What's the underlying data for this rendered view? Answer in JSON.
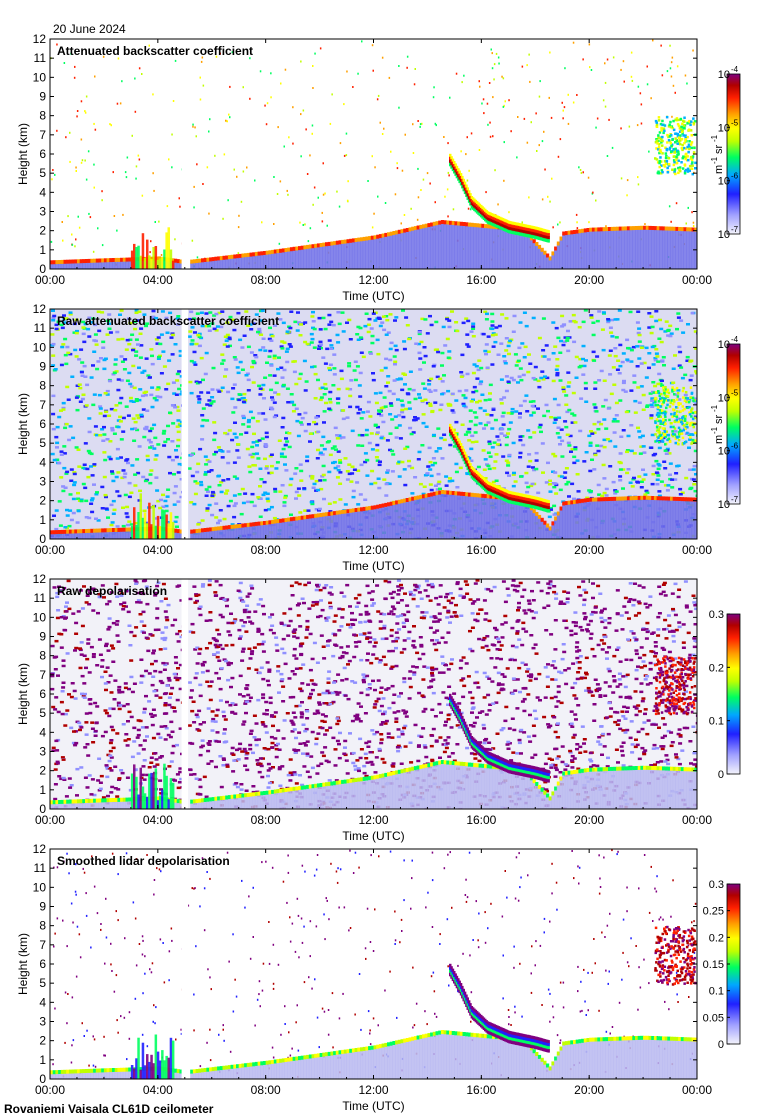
{
  "date": "20 June 2024",
  "footer": "Rovaniemi Vaisala CL61D ceilometer",
  "colors": {
    "rainbow": [
      "#e8e8f8",
      "#9090ff",
      "#2020ff",
      "#00b0ff",
      "#00ff60",
      "#c0ff00",
      "#ffff00",
      "#ffa000",
      "#ff2000",
      "#b00000",
      "#800080"
    ]
  },
  "chart_data": [
    {
      "type": "heatmap",
      "title": "Attenuated backscatter coefficient",
      "xlabel": "Time (UTC)",
      "ylabel": "Height (km)",
      "xlim": [
        0,
        24
      ],
      "ylim": [
        0,
        12
      ],
      "xticks": [
        "00:00",
        "04:00",
        "08:00",
        "12:00",
        "16:00",
        "20:00",
        "00:00"
      ],
      "yticks": [
        "0",
        "1",
        "2",
        "3",
        "4",
        "5",
        "6",
        "7",
        "8",
        "9",
        "10",
        "11",
        "12"
      ],
      "colorbar": {
        "scale": "log",
        "ticks": [
          {
            "base": "10",
            "exp": "-4"
          },
          {
            "base": "10",
            "exp": "-5"
          },
          {
            "base": "10",
            "exp": "-6"
          },
          {
            "base": "10",
            "exp": "-7"
          }
        ],
        "unit": "m",
        "unit_exp1": "-1",
        "unit2": "sr",
        "unit_exp2": "-1"
      },
      "features": {
        "boundary_layer_top_km": [
          [
            0,
            0.3
          ],
          [
            4,
            0.5
          ],
          [
            5,
            0.3
          ],
          [
            8,
            0.8
          ],
          [
            12,
            1.6
          ],
          [
            14.5,
            2.4
          ],
          [
            16,
            2.2
          ],
          [
            17.5,
            2.0
          ],
          [
            18.5,
            0.5
          ],
          [
            20,
            2.0
          ],
          [
            22,
            2.1
          ]
        ],
        "cloud_band_km": [
          [
            14.8,
            5.8
          ],
          [
            15.5,
            3.5
          ],
          [
            16.5,
            2.2
          ],
          [
            18.5,
            2.0
          ],
          [
            20,
            2.0
          ],
          [
            22,
            2.1
          ]
        ],
        "upper_cloud": {
          "time_h": [
            22.3,
            23.9
          ],
          "height_km": [
            4.8,
            8.0
          ]
        },
        "data_gap_h": [
          4.9,
          5.1
        ]
      }
    },
    {
      "type": "heatmap",
      "title": "Raw attenuated backscatter coefficient",
      "xlabel": "Time (UTC)",
      "ylabel": "Height (km)",
      "xlim": [
        0,
        24
      ],
      "ylim": [
        0,
        12
      ],
      "xticks": [
        "00:00",
        "04:00",
        "08:00",
        "12:00",
        "16:00",
        "20:00",
        "00:00"
      ],
      "yticks": [
        "0",
        "1",
        "2",
        "3",
        "4",
        "5",
        "6",
        "7",
        "8",
        "9",
        "10",
        "11",
        "12"
      ],
      "colorbar": {
        "scale": "log",
        "ticks": [
          {
            "base": "10",
            "exp": "-4"
          },
          {
            "base": "10",
            "exp": "-5"
          },
          {
            "base": "10",
            "exp": "-6"
          },
          {
            "base": "10",
            "exp": "-7"
          }
        ],
        "unit": "m",
        "unit_exp1": "-1",
        "unit2": "sr",
        "unit_exp2": "-1"
      }
    },
    {
      "type": "heatmap",
      "title": "Raw depolarisation",
      "xlabel": "Time (UTC)",
      "ylabel": "Height (km)",
      "xlim": [
        0,
        24
      ],
      "ylim": [
        0,
        12
      ],
      "xticks": [
        "00:00",
        "04:00",
        "08:00",
        "12:00",
        "16:00",
        "20:00",
        "00:00"
      ],
      "yticks": [
        "0",
        "1",
        "2",
        "3",
        "4",
        "5",
        "6",
        "7",
        "8",
        "9",
        "10",
        "11",
        "12"
      ],
      "colorbar": {
        "scale": "linear",
        "range": [
          0,
          0.3
        ],
        "ticks": [
          "0.3",
          "0.2",
          "0.1",
          "0"
        ]
      }
    },
    {
      "type": "heatmap",
      "title": "Smoothed lidar depolarisation",
      "xlabel": "Time (UTC)",
      "ylabel": "Height (km)",
      "xlim": [
        0,
        24
      ],
      "ylim": [
        0,
        12
      ],
      "xticks": [
        "00:00",
        "04:00",
        "08:00",
        "12:00",
        "16:00",
        "20:00",
        "00:00"
      ],
      "yticks": [
        "0",
        "1",
        "2",
        "3",
        "4",
        "5",
        "6",
        "7",
        "8",
        "9",
        "10",
        "11",
        "12"
      ],
      "colorbar": {
        "scale": "linear",
        "range": [
          0,
          0.3
        ],
        "ticks": [
          "0.3",
          "0.25",
          "0.2",
          "0.15",
          "0.1",
          "0.05",
          "0"
        ]
      }
    }
  ]
}
